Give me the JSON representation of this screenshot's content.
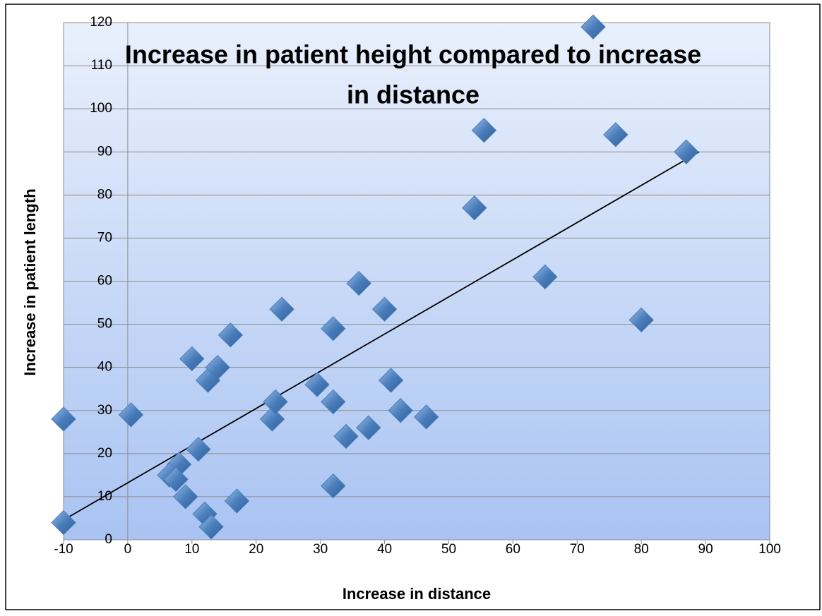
{
  "chart_data": {
    "type": "scatter",
    "title": "Increase in patient height compared to increase in distance",
    "x_label": "Increase in distance",
    "y_label": "Increase in patient length",
    "x": [
      -10,
      -10,
      0.5,
      10,
      12.5,
      14,
      16,
      11,
      8,
      6.5,
      7.5,
      9,
      12,
      13,
      17,
      22.5,
      23,
      24,
      29.5,
      32,
      32,
      34,
      32,
      36,
      37.5,
      40,
      41,
      42.5,
      46.5,
      54,
      55.5,
      65,
      72.5,
      76,
      80,
      87
    ],
    "values": [
      4,
      28,
      29,
      42,
      37,
      40,
      47.5,
      21,
      17.5,
      15,
      14,
      10,
      6,
      3,
      9,
      28,
      32,
      53.5,
      36,
      49,
      32,
      24,
      12.5,
      59.5,
      26,
      53.5,
      37,
      30,
      28.5,
      77,
      95,
      61,
      119,
      94,
      51,
      90
    ],
    "color": "#4a7ebb",
    "trendline": {
      "x": [
        -10,
        89
      ],
      "values": [
        4.6,
        90
      ],
      "color": "#000000"
    },
    "xlim": [
      -10,
      100
    ],
    "ylim": [
      0,
      120
    ],
    "xticks": [
      -10,
      0,
      10,
      20,
      30,
      40,
      50,
      60,
      70,
      80,
      90,
      100
    ],
    "yticks": [
      0,
      10,
      20,
      30,
      40,
      50,
      60,
      70,
      80,
      90,
      100,
      110,
      120
    ],
    "grid": true
  }
}
